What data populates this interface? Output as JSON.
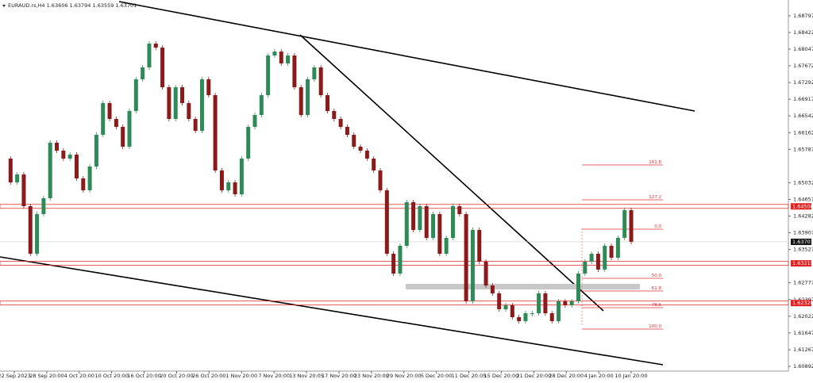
{
  "chart_data": {
    "type": "candlestick",
    "title": "EURAUD.rs,H4  1.63606 1.63794 1.63559 1.63701",
    "close": [
      1.65578,
      1.65041,
      1.6522,
      1.64505,
      1.63432,
      1.64326,
      1.64684,
      1.65936,
      1.65757,
      1.65578,
      1.65667,
      1.65131,
      1.64863,
      1.65399,
      1.66114,
      1.6683,
      1.66472,
      1.66293,
      1.65846,
      1.66651,
      1.67366,
      1.67635,
      1.68171,
      1.68082,
      1.67187,
      1.66472,
      1.67187,
      1.6683,
      1.66472,
      1.66204,
      1.67366,
      1.67009,
      1.6531,
      1.64863,
      1.65041,
      1.64773,
      1.65578,
      1.66293,
      1.66561,
      1.67009,
      1.67903,
      1.67992,
      1.67724,
      1.67903,
      1.67187,
      1.66561,
      1.67366,
      1.67635,
      1.67009,
      1.66651,
      1.66472,
      1.66293,
      1.66114,
      1.65846,
      1.65757,
      1.65578,
      1.6531,
      1.64863,
      1.63432,
      1.62984,
      1.63611,
      1.64594,
      1.63968,
      1.64505,
      1.63789,
      1.64326,
      1.63432,
      1.63789,
      1.64505,
      1.64326,
      1.62359,
      1.63968,
      1.63253,
      1.62716,
      1.62538,
      1.6218,
      1.62269,
      1.62001,
      1.61912,
      1.6209,
      1.6209,
      1.62538,
      1.6209,
      1.61912,
      1.62359,
      1.62269,
      1.62359,
      1.62984,
      1.63253,
      1.63432,
      1.63075,
      1.63611,
      1.63342,
      1.63789,
      1.64415,
      1.63701
    ],
    "up_color": "#2e8b57",
    "down_color": "#8b1a1a",
    "ylim": [
      1.60892,
      1.68797
    ],
    "yticks": [
      1.60892,
      1.61267,
      1.61647,
      1.62022,
      1.62397,
      1.62777,
      1.63527,
      1.63907,
      1.64282,
      1.64657,
      1.65032,
      1.65787,
      1.66162,
      1.66542,
      1.66917,
      1.67292,
      1.67672,
      1.68047,
      1.68422,
      1.68797
    ],
    "xticks": [
      "22 Sep 2023",
      "28 Sep 20:00",
      "4 Oct 20:00",
      "10 Oct 20:00",
      "16 Oct 20:00",
      "20 Oct 20:00",
      "26 Oct 20:00",
      "1 Nov 20:00",
      "7 Nov 20:00",
      "13 Nov 20:05",
      "17 Nov 20:00",
      "23 Nov 20:00",
      "29 Nov 20:00",
      "5 Dec 20:00",
      "11 Dec 20:05",
      "15 Dec 20:00",
      "21 Dec 20:00",
      "28 Dec 20:00",
      "4 Jan 20:00",
      "10 Jan 20:00"
    ],
    "levels": [
      {
        "value": 1.645,
        "label": "1.64500"
      },
      {
        "value": 1.63215,
        "label": "1.63215"
      },
      {
        "value": 1.6232,
        "label": "1.62320"
      }
    ],
    "current_price": {
      "value": 1.63701,
      "label": "1.63701"
    },
    "fib_labels": [
      "161.8",
      "127.2",
      "0.0",
      "50.0",
      "61.8",
      "78.6",
      "100.0"
    ]
  }
}
